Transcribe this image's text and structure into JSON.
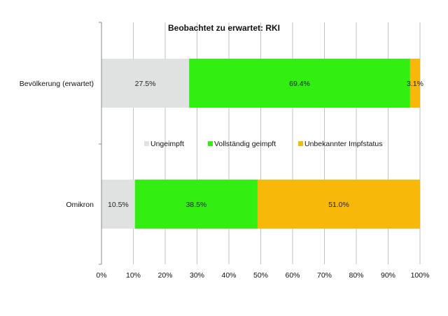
{
  "chart_data": {
    "type": "bar",
    "orientation": "horizontal",
    "stacked": "percent",
    "title": "Beobachtet zu erwartet: RKI",
    "categories": [
      "Bevölkerung (erwartet)",
      "Omikron"
    ],
    "series": [
      {
        "name": "Ungeimpft",
        "color": "#e0e2e1",
        "values": [
          27.5,
          10.5
        ],
        "labels": [
          "27.5%",
          "10.5%"
        ]
      },
      {
        "name": "Vollständig geimpft",
        "color": "#33ee11",
        "values": [
          69.4,
          38.5
        ],
        "labels": [
          "69.4%",
          "38.5%"
        ]
      },
      {
        "name": "Unbekannter Impfstatus",
        "color": "#f8b80a",
        "values": [
          3.1,
          51.0
        ],
        "labels": [
          "3.1%",
          "51.0%"
        ]
      }
    ],
    "xlim": [
      0,
      100
    ],
    "xticks": [
      "0%",
      "10%",
      "20%",
      "30%",
      "40%",
      "50%",
      "60%",
      "70%",
      "80%",
      "90%",
      "100%"
    ],
    "grid": true,
    "legend_position": "center"
  }
}
